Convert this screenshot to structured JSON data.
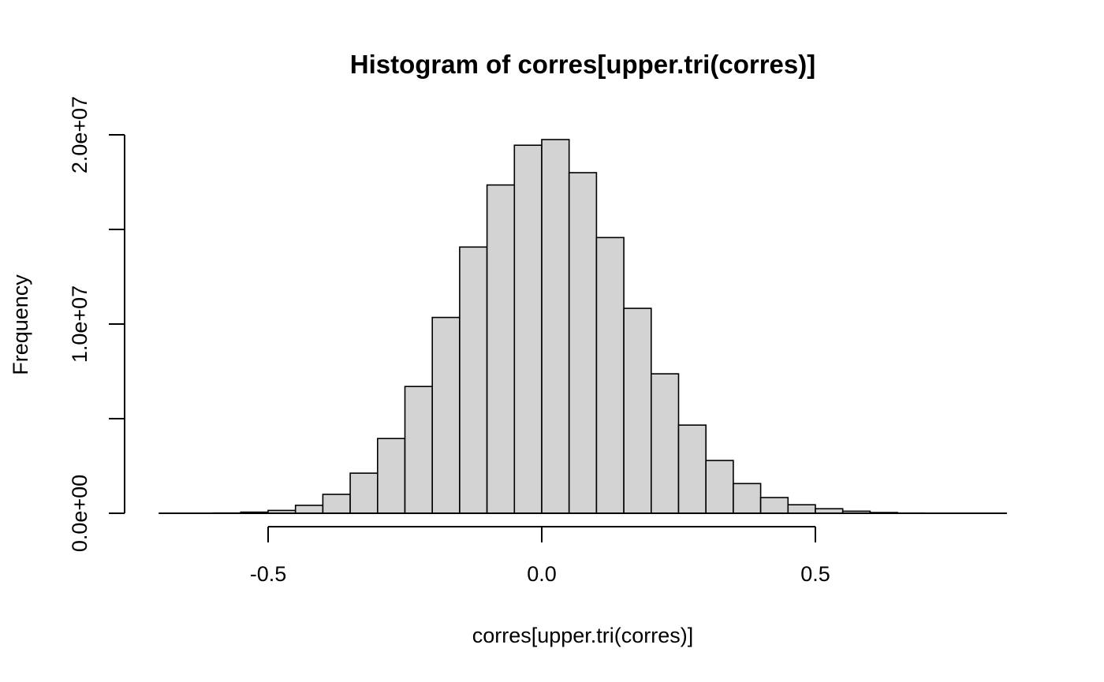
{
  "chart_data": {
    "type": "bar",
    "title": "Histogram of corres[upper.tri(corres)]",
    "xlabel": "corres[upper.tri(corres)]",
    "ylabel": "Frequency",
    "xlim": [
      -0.7,
      0.85
    ],
    "ylim": [
      0,
      20000000
    ],
    "grid": false,
    "bar_fill": "#d3d3d3",
    "bar_edge": "#000000",
    "x_ticks": [
      {
        "value": -0.5,
        "label": "-0.5"
      },
      {
        "value": 0.0,
        "label": "0.0"
      },
      {
        "value": 0.5,
        "label": "0.5"
      }
    ],
    "y_ticks": [
      {
        "value": 0,
        "label": "0.0e+00"
      },
      {
        "value": 5000000,
        "label": ""
      },
      {
        "value": 10000000,
        "label": "1.0e+07"
      },
      {
        "value": 15000000,
        "label": ""
      },
      {
        "value": 20000000,
        "label": "2.0e+07"
      }
    ],
    "bins": [
      {
        "x0": -0.7,
        "x1": -0.65,
        "count": 0
      },
      {
        "x0": -0.65,
        "x1": -0.6,
        "count": 5000
      },
      {
        "x0": -0.6,
        "x1": -0.55,
        "count": 15000
      },
      {
        "x0": -0.55,
        "x1": -0.5,
        "count": 60000
      },
      {
        "x0": -0.5,
        "x1": -0.45,
        "count": 150000
      },
      {
        "x0": -0.45,
        "x1": -0.4,
        "count": 420000
      },
      {
        "x0": -0.4,
        "x1": -0.35,
        "count": 1000000
      },
      {
        "x0": -0.35,
        "x1": -0.3,
        "count": 2120000
      },
      {
        "x0": -0.3,
        "x1": -0.25,
        "count": 3950000
      },
      {
        "x0": -0.25,
        "x1": -0.2,
        "count": 6700000
      },
      {
        "x0": -0.2,
        "x1": -0.15,
        "count": 10350000
      },
      {
        "x0": -0.15,
        "x1": -0.1,
        "count": 14070000
      },
      {
        "x0": -0.1,
        "x1": -0.05,
        "count": 17350000
      },
      {
        "x0": -0.05,
        "x1": 0.0,
        "count": 19450000
      },
      {
        "x0": 0.0,
        "x1": 0.05,
        "count": 19750000
      },
      {
        "x0": 0.05,
        "x1": 0.1,
        "count": 18000000
      },
      {
        "x0": 0.1,
        "x1": 0.15,
        "count": 14570000
      },
      {
        "x0": 0.15,
        "x1": 0.2,
        "count": 10830000
      },
      {
        "x0": 0.2,
        "x1": 0.25,
        "count": 7370000
      },
      {
        "x0": 0.25,
        "x1": 0.3,
        "count": 4660000
      },
      {
        "x0": 0.3,
        "x1": 0.35,
        "count": 2790000
      },
      {
        "x0": 0.35,
        "x1": 0.4,
        "count": 1570000
      },
      {
        "x0": 0.4,
        "x1": 0.45,
        "count": 830000
      },
      {
        "x0": 0.45,
        "x1": 0.5,
        "count": 450000
      },
      {
        "x0": 0.5,
        "x1": 0.55,
        "count": 240000
      },
      {
        "x0": 0.55,
        "x1": 0.6,
        "count": 110000
      },
      {
        "x0": 0.6,
        "x1": 0.65,
        "count": 40000
      },
      {
        "x0": 0.65,
        "x1": 0.7,
        "count": 12000
      },
      {
        "x0": 0.7,
        "x1": 0.75,
        "count": 4000
      },
      {
        "x0": 0.75,
        "x1": 0.8,
        "count": 1000
      },
      {
        "x0": 0.8,
        "x1": 0.85,
        "count": 0
      }
    ]
  }
}
